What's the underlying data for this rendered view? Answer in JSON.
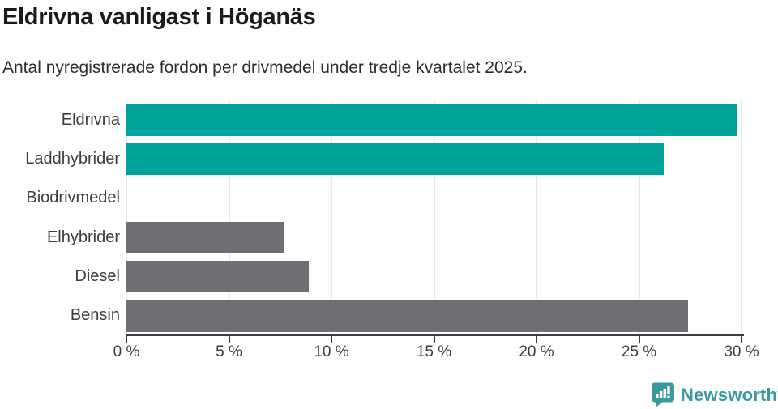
{
  "header": {
    "title": "Eldrivna vanligast i Höganäs",
    "subtitle": "Antal nyregistrerade fordon per drivmedel under tredje kvartalet 2025."
  },
  "chart_data": {
    "type": "bar",
    "orientation": "horizontal",
    "title": "Eldrivna vanligast i Höganäs",
    "subtitle": "Antal nyregistrerade fordon per drivmedel under tredje kvartalet 2025.",
    "categories": [
      "Eldrivna",
      "Laddhybrider",
      "Biodrivmedel",
      "Elhybrider",
      "Diesel",
      "Bensin"
    ],
    "values": [
      29.8,
      26.2,
      0,
      7.7,
      8.9,
      27.4
    ],
    "unit": "%",
    "xlabel": "",
    "ylabel": "",
    "xlim": [
      0,
      30
    ],
    "x_ticks": [
      0,
      5,
      10,
      15,
      20,
      25,
      30
    ],
    "x_tick_labels": [
      "0 %",
      "5 %",
      "10 %",
      "15 %",
      "20 %",
      "25 %",
      "30 %"
    ],
    "bar_colors": [
      "#00a39a",
      "#00a39a",
      "#00a39a",
      "#6e6e73",
      "#6e6e73",
      "#6e6e73"
    ],
    "colors": {
      "highlight": "#00a39a",
      "default": "#6e6e73",
      "gridline": "#e8e8e8",
      "axis": "#3d3d3d"
    },
    "grid": true,
    "legend_position": "none"
  },
  "footer": {
    "brand": "Newsworthy",
    "brand_color": "#3a9a9e"
  }
}
